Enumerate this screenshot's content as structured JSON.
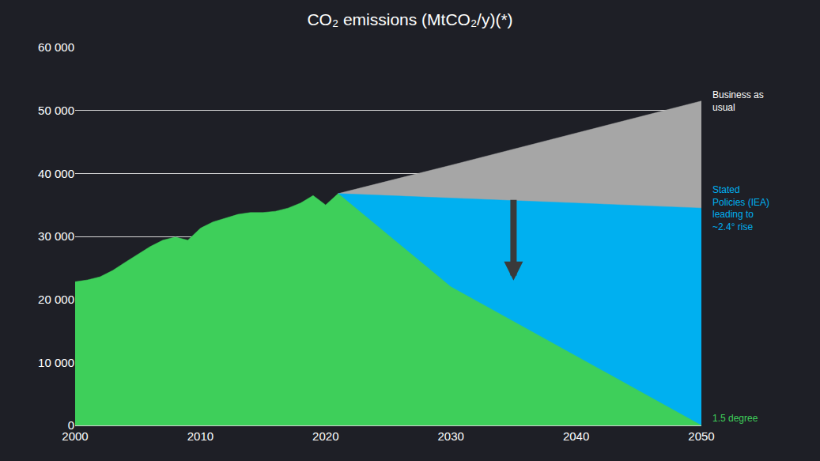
{
  "chart_data": {
    "type": "area",
    "title": "CO₂ emissions (MtCO₂/y)(*)",
    "x": [
      2000,
      2001,
      2002,
      2003,
      2004,
      2005,
      2006,
      2007,
      2008,
      2009,
      2010,
      2011,
      2012,
      2013,
      2014,
      2015,
      2016,
      2017,
      2018,
      2019,
      2020,
      2021,
      2030,
      2050
    ],
    "series": [
      {
        "name": "Business as usual",
        "color": "#a6a6a6",
        "values": [
          null,
          null,
          null,
          null,
          null,
          null,
          null,
          null,
          null,
          null,
          null,
          null,
          null,
          null,
          null,
          null,
          null,
          null,
          null,
          null,
          null,
          36800,
          41300,
          51500
        ]
      },
      {
        "name": "Stated Policies (IEA) leading to ~2.4° rise",
        "color": "#00b0f0",
        "values": [
          null,
          null,
          null,
          null,
          null,
          null,
          null,
          null,
          null,
          null,
          null,
          null,
          null,
          null,
          null,
          null,
          null,
          null,
          null,
          null,
          null,
          36800,
          36100,
          34500
        ]
      },
      {
        "name": "1.5 degree",
        "color": "#3ecf5a",
        "values": [
          22800,
          23100,
          23600,
          24600,
          25900,
          27200,
          28400,
          29400,
          29900,
          29400,
          31300,
          32300,
          32900,
          33500,
          33800,
          33800,
          34000,
          34500,
          35300,
          36500,
          35000,
          36800,
          22000,
          0
        ]
      }
    ],
    "stacked": false,
    "xlim": [
      2000,
      2050
    ],
    "xticks": [
      2000,
      2010,
      2020,
      2030,
      2040,
      2050
    ],
    "ylim": [
      0,
      60000
    ],
    "yticks": [
      0,
      {
        "value": 10000,
        "label": "10 000"
      },
      {
        "value": 20000,
        "label": "20 000"
      },
      {
        "value": 30000,
        "label": "30 000"
      },
      {
        "value": 40000,
        "label": "40 000"
      },
      {
        "value": 50000,
        "label": "50 000"
      },
      {
        "value": 60000,
        "label": "60 000"
      }
    ],
    "grid": true
  }
}
